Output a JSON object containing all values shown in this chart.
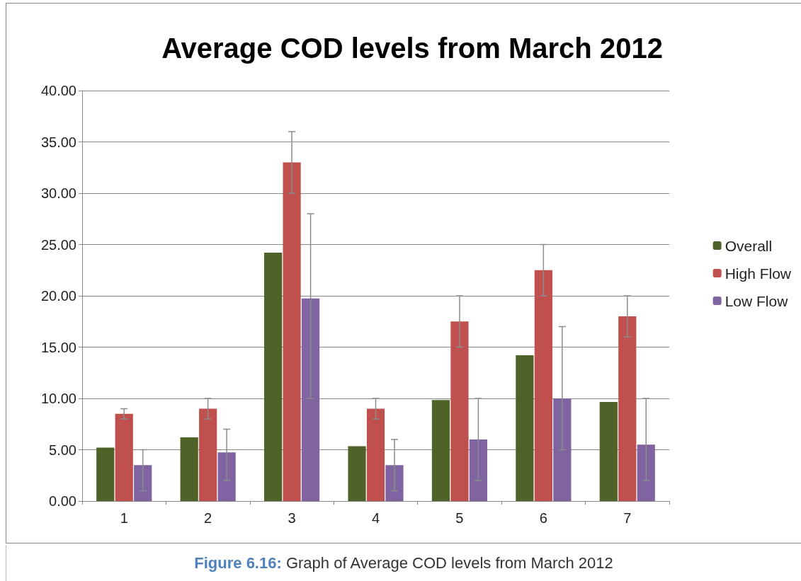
{
  "chart_data": {
    "type": "bar",
    "title": "Average COD levels from March 2012",
    "categories": [
      "1",
      "2",
      "3",
      "4",
      "5",
      "6",
      "7"
    ],
    "series": [
      {
        "name": "Overall",
        "color": "#4f6228",
        "values": [
          5.2,
          6.2,
          24.2,
          5.35,
          9.85,
          14.2,
          9.65
        ]
      },
      {
        "name": "High Flow",
        "color": "#c0504d",
        "values": [
          8.5,
          9,
          33,
          9,
          17.5,
          22.5,
          18
        ],
        "errors": [
          [
            8,
            9
          ],
          [
            8,
            10
          ],
          [
            30,
            36
          ],
          [
            8,
            10
          ],
          [
            15,
            20
          ],
          [
            20,
            25
          ],
          [
            16,
            20
          ]
        ]
      },
      {
        "name": "Low Flow",
        "color": "#8064a2",
        "values": [
          3.5,
          4.75,
          19.75,
          3.5,
          6,
          10,
          5.5
        ],
        "errors": [
          [
            1,
            5
          ],
          [
            2,
            7
          ],
          [
            10,
            28
          ],
          [
            1,
            6
          ],
          [
            2,
            10
          ],
          [
            5,
            17
          ],
          [
            2,
            10
          ]
        ]
      }
    ],
    "ylim": [
      0,
      40
    ],
    "yticks": [
      {
        "value": 0,
        "label": "0.00"
      },
      {
        "value": 5,
        "label": "5.00"
      },
      {
        "value": 10,
        "label": "10.00"
      },
      {
        "value": 15,
        "label": "15.00"
      },
      {
        "value": 20,
        "label": "20.00"
      },
      {
        "value": 25,
        "label": "25.00"
      },
      {
        "value": 30,
        "label": "30.00"
      },
      {
        "value": 35,
        "label": "35.00"
      },
      {
        "value": 40,
        "label": "40.00"
      }
    ],
    "grid": "y",
    "legend": "right",
    "annotations": [
      "Figure 6.16: Graph of Average COD levels from March 2012"
    ]
  }
}
